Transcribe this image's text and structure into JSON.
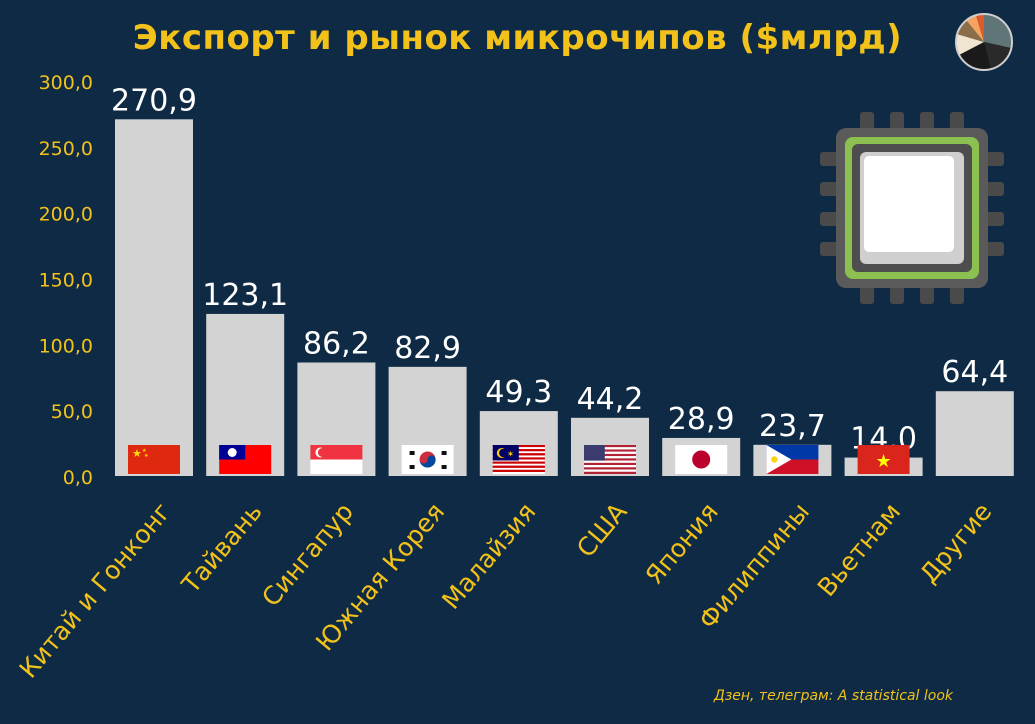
{
  "chart_data": {
    "type": "bar",
    "title": "Экспорт и рынок микрочипов ($млрд)",
    "categories": [
      "Китай и Гонконг",
      "Тайвань",
      "Сингапур",
      "Южная Корея",
      "Малайзия",
      "США",
      "Япония",
      "Филиппины",
      "Вьетнам",
      "Другие"
    ],
    "values": [
      270.9,
      123.1,
      86.2,
      82.9,
      49.3,
      44.2,
      28.9,
      23.7,
      14.0,
      64.4
    ],
    "value_labels": [
      "270,9",
      "123,1",
      "86,2",
      "82,9",
      "49,3",
      "44,2",
      "28,9",
      "23,7",
      "14,0",
      "64,4"
    ],
    "yticks": [
      "0,0",
      "50,0",
      "100,0",
      "150,0",
      "200,0",
      "250,0",
      "300,0"
    ],
    "ytick_values": [
      0,
      50,
      100,
      150,
      200,
      250,
      300
    ],
    "ylim": [
      0,
      300
    ],
    "flags": [
      "china-flag",
      "taiwan-flag",
      "singapore-flag",
      "south-korea-flag",
      "malaysia-flag",
      "usa-flag",
      "japan-flag",
      "philippines-flag",
      "vietnam-flag",
      ""
    ],
    "grid": false,
    "legend": "none",
    "bar_color": "#d3d3d3",
    "label_color": "#f2c21b",
    "background": "#0e2a44"
  },
  "decorations": {
    "pie_icon": "pie-chart-icon",
    "chip_icon": "microchip-icon"
  },
  "credit": "Дзен, телеграм: A statistical look"
}
